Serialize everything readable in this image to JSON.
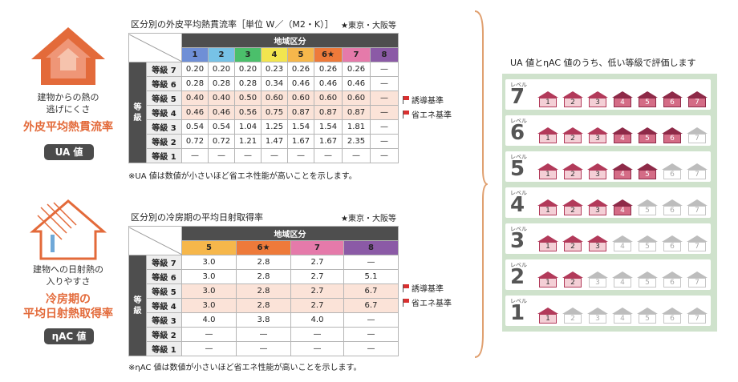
{
  "colors": {
    "accent": "#e36a3a",
    "header_dark": "#4e4e4e",
    "highlight_row": "#fbe3d8",
    "panel_bg": "#cfe2cc",
    "house_active": "#b23a5a"
  },
  "ua_block": {
    "icon": "house-heat-loss-icon",
    "caption_line1": "建物からの熱の",
    "caption_line2": "逃げにくさ",
    "name": "外皮平均熱貫流率",
    "badge": "UA 値"
  },
  "nac_block": {
    "icon": "house-sunlight-icon",
    "caption_line1": "建物への日射熱の",
    "caption_line2": "入りやすさ",
    "name_line1": "冷房期の",
    "name_line2": "平均日射熱取得率",
    "badge": "ηAC 値"
  },
  "ua_table": {
    "title": "区分別の外皮平均熱貫流率［単位 W／（M2・K）］",
    "star_note": "★東京・大阪等",
    "region_header": "地域区分",
    "side_label_1": "等",
    "side_label_2": "級",
    "columns": [
      {
        "label": "1",
        "color": "#6f8fd6"
      },
      {
        "label": "2",
        "color": "#77c2e6"
      },
      {
        "label": "3",
        "color": "#4bbf6b"
      },
      {
        "label": "4",
        "color": "#f2e54f"
      },
      {
        "label": "5",
        "color": "#f6b74b"
      },
      {
        "label": "6★",
        "color": "#ee7a3a"
      },
      {
        "label": "7",
        "color": "#e57aaa"
      },
      {
        "label": "8",
        "color": "#8b5aa6"
      }
    ],
    "rows": [
      {
        "label": "等級 7",
        "values": [
          "0.20",
          "0.20",
          "0.20",
          "0.23",
          "0.26",
          "0.26",
          "0.26",
          "—"
        ],
        "highlight": false
      },
      {
        "label": "等級 6",
        "values": [
          "0.28",
          "0.28",
          "0.28",
          "0.34",
          "0.46",
          "0.46",
          "0.46",
          "—"
        ],
        "highlight": false
      },
      {
        "label": "等級 5",
        "values": [
          "0.40",
          "0.40",
          "0.50",
          "0.60",
          "0.60",
          "0.60",
          "0.60",
          "—"
        ],
        "highlight": true
      },
      {
        "label": "等級 4",
        "values": [
          "0.46",
          "0.46",
          "0.56",
          "0.75",
          "0.87",
          "0.87",
          "0.87",
          "—"
        ],
        "highlight": true
      },
      {
        "label": "等級 3",
        "values": [
          "0.54",
          "0.54",
          "1.04",
          "1.25",
          "1.54",
          "1.54",
          "1.81",
          "—"
        ],
        "highlight": false
      },
      {
        "label": "等級 2",
        "values": [
          "0.72",
          "0.72",
          "1.21",
          "1.47",
          "1.67",
          "1.67",
          "2.35",
          "—"
        ],
        "highlight": false
      },
      {
        "label": "等級 1",
        "values": [
          "—",
          "—",
          "—",
          "—",
          "—",
          "—",
          "—",
          "—"
        ],
        "highlight": false
      }
    ],
    "flag_1": "誘導基準",
    "flag_2": "省エネ基準",
    "note": "※UA 値は数値が小さいほど省エネ性能が高いことを示します。"
  },
  "nac_table": {
    "title": "区分別の冷房期の平均日射取得率",
    "star_note": "★東京・大阪等",
    "region_header": "地域区分",
    "side_label_1": "等",
    "side_label_2": "級",
    "columns": [
      {
        "label": "5",
        "color": "#f6b74b"
      },
      {
        "label": "6★",
        "color": "#ee7a3a"
      },
      {
        "label": "7",
        "color": "#e57aaa"
      },
      {
        "label": "8",
        "color": "#8b5aa6"
      }
    ],
    "rows": [
      {
        "label": "等級 7",
        "values": [
          "3.0",
          "2.8",
          "2.7",
          "—"
        ],
        "highlight": false
      },
      {
        "label": "等級 6",
        "values": [
          "3.0",
          "2.8",
          "2.7",
          "5.1"
        ],
        "highlight": false
      },
      {
        "label": "等級 5",
        "values": [
          "3.0",
          "2.8",
          "2.7",
          "6.7"
        ],
        "highlight": true
      },
      {
        "label": "等級 4",
        "values": [
          "3.0",
          "2.8",
          "2.7",
          "6.7"
        ],
        "highlight": true
      },
      {
        "label": "等級 3",
        "values": [
          "4.0",
          "3.8",
          "4.0",
          "—"
        ],
        "highlight": false
      },
      {
        "label": "等級 2",
        "values": [
          "—",
          "—",
          "—",
          "—"
        ],
        "highlight": false
      },
      {
        "label": "等級 1",
        "values": [
          "—",
          "—",
          "—",
          "—"
        ],
        "highlight": false
      }
    ],
    "flag_1": "誘導基準",
    "flag_2": "省エネ基準",
    "note": "※ηAC 値は数値が小さいほど省エネ性能が高いことを示します。"
  },
  "levels_panel": {
    "header": "UA 値とηAC 値のうち、低い等級で評価します",
    "small_label": "レベル",
    "house_labels": [
      "1",
      "2",
      "3",
      "4",
      "5",
      "6",
      "7"
    ],
    "levels": [
      7,
      6,
      5,
      4,
      3,
      2,
      1
    ]
  }
}
